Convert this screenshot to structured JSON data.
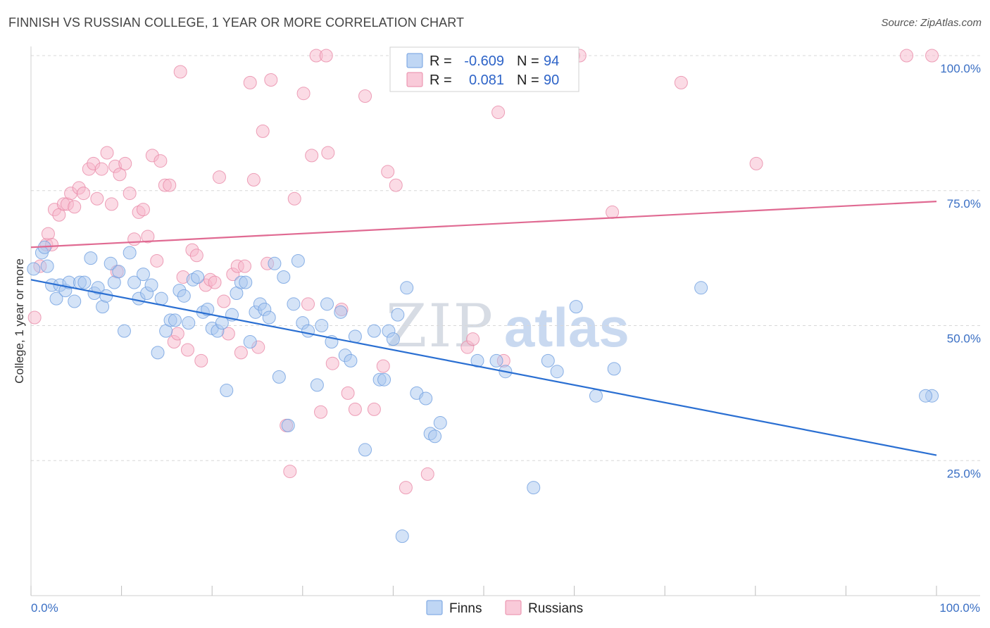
{
  "title": "FINNISH VS RUSSIAN COLLEGE, 1 YEAR OR MORE CORRELATION CHART",
  "source": "Source: ZipAtlas.com",
  "watermark": {
    "zip": "ZIP",
    "atlas": "atlas"
  },
  "legend_box": {
    "row1": {
      "r_label": "R =",
      "r_value": "-0.609",
      "n_label": "N =",
      "n_value": "94",
      "color": "#a9c8f0"
    },
    "row2": {
      "r_label": "R =",
      "r_value": "0.081",
      "n_label": "N =",
      "n_value": "90",
      "color": "#f7b8cc"
    }
  },
  "bottom_legend": {
    "finns": "Finns",
    "russians": "Russians"
  },
  "colors": {
    "finns_fill": "#a9c8f0",
    "finns_stroke": "#6f9fe0",
    "finns_line": "#2a6fd2",
    "russians_fill": "#f7b8cc",
    "russians_stroke": "#e98aa8",
    "russians_line": "#e06a92",
    "grid": "#d8d8d8",
    "axis_text": "#3a6fc4"
  },
  "chart_data": {
    "type": "scatter",
    "title": "FINNISH VS RUSSIAN COLLEGE, 1 YEAR OR MORE CORRELATION CHART",
    "xlabel": "",
    "ylabel": "College, 1 year or more",
    "xlim": [
      0,
      100
    ],
    "ylim": [
      0,
      100
    ],
    "x_tick_labels": [
      "0.0%",
      "100.0%"
    ],
    "y_tick_labels": [
      "100.0%",
      "75.0%",
      "50.0%",
      "25.0%"
    ],
    "y_ticks": [
      100,
      75,
      50,
      25
    ],
    "grid": true,
    "legend": "top-center",
    "series": [
      {
        "name": "Finns",
        "r": -0.609,
        "n": 94,
        "trend": {
          "y_at_x0": 58.5,
          "y_at_x100": 26.0
        },
        "points": [
          [
            0.3,
            60.5
          ],
          [
            1.2,
            63.5
          ],
          [
            1.5,
            64.5
          ],
          [
            1.8,
            61
          ],
          [
            2.3,
            57.5
          ],
          [
            2.8,
            55
          ],
          [
            3.2,
            57.5
          ],
          [
            3.8,
            56.5
          ],
          [
            4.2,
            58
          ],
          [
            4.8,
            54.5
          ],
          [
            5.4,
            58
          ],
          [
            5.9,
            58
          ],
          [
            6.6,
            62.5
          ],
          [
            7.0,
            56
          ],
          [
            7.4,
            57
          ],
          [
            7.9,
            53.5
          ],
          [
            8.3,
            55.5
          ],
          [
            8.8,
            61.5
          ],
          [
            9.2,
            58
          ],
          [
            9.7,
            60
          ],
          [
            10.3,
            49
          ],
          [
            10.9,
            63.5
          ],
          [
            11.4,
            58
          ],
          [
            11.9,
            55
          ],
          [
            12.4,
            59.5
          ],
          [
            12.8,
            56
          ],
          [
            13.3,
            57.5
          ],
          [
            14.0,
            45
          ],
          [
            14.4,
            55
          ],
          [
            14.9,
            49
          ],
          [
            15.4,
            51
          ],
          [
            15.9,
            51
          ],
          [
            16.4,
            56.5
          ],
          [
            16.9,
            55.5
          ],
          [
            17.4,
            50.5
          ],
          [
            17.9,
            58.5
          ],
          [
            18.4,
            59
          ],
          [
            19.0,
            52.5
          ],
          [
            19.5,
            53
          ],
          [
            20.0,
            49.5
          ],
          [
            20.6,
            49
          ],
          [
            21.1,
            50.5
          ],
          [
            21.6,
            38
          ],
          [
            22.2,
            52
          ],
          [
            22.7,
            56
          ],
          [
            23.2,
            58
          ],
          [
            23.7,
            58
          ],
          [
            24.2,
            47
          ],
          [
            24.8,
            52.5
          ],
          [
            25.3,
            54
          ],
          [
            25.8,
            53
          ],
          [
            26.3,
            51.5
          ],
          [
            26.9,
            61.5
          ],
          [
            27.4,
            40.5
          ],
          [
            27.9,
            59
          ],
          [
            28.4,
            31.5
          ],
          [
            29.0,
            54
          ],
          [
            29.5,
            62
          ],
          [
            30.0,
            50.5
          ],
          [
            30.6,
            49
          ],
          [
            31.6,
            39
          ],
          [
            32.1,
            50
          ],
          [
            32.7,
            54
          ],
          [
            33.2,
            47
          ],
          [
            34.2,
            52.5
          ],
          [
            34.7,
            44.5
          ],
          [
            35.3,
            43.5
          ],
          [
            35.8,
            48
          ],
          [
            36.9,
            27
          ],
          [
            37.9,
            49
          ],
          [
            38.5,
            40
          ],
          [
            39.0,
            40
          ],
          [
            39.5,
            49
          ],
          [
            40.0,
            47.5
          ],
          [
            40.5,
            52
          ],
          [
            41.0,
            11
          ],
          [
            41.5,
            57
          ],
          [
            42.6,
            37.5
          ],
          [
            43.6,
            36.5
          ],
          [
            44.1,
            30
          ],
          [
            44.6,
            29.5
          ],
          [
            45.2,
            32
          ],
          [
            49.3,
            43.5
          ],
          [
            51.4,
            43.5
          ],
          [
            52.4,
            41.5
          ],
          [
            55.5,
            20
          ],
          [
            57.1,
            43.5
          ],
          [
            58.1,
            41.5
          ],
          [
            60.2,
            53.5
          ],
          [
            62.4,
            37
          ],
          [
            64.4,
            42
          ],
          [
            74.0,
            57
          ],
          [
            99.5,
            37
          ],
          [
            98.8,
            37
          ]
        ]
      },
      {
        "name": "Russians",
        "r": 0.081,
        "n": 90,
        "trend": {
          "y_at_x0": 64.5,
          "y_at_x100": 73.0
        },
        "points": [
          [
            0.4,
            51.5
          ],
          [
            1.0,
            61
          ],
          [
            1.7,
            65
          ],
          [
            1.9,
            67
          ],
          [
            2.3,
            65
          ],
          [
            2.6,
            71.5
          ],
          [
            3.1,
            70.5
          ],
          [
            3.6,
            72.5
          ],
          [
            4.0,
            72.5
          ],
          [
            4.4,
            74.5
          ],
          [
            4.8,
            72
          ],
          [
            5.3,
            75.5
          ],
          [
            5.8,
            74.5
          ],
          [
            6.4,
            79
          ],
          [
            6.9,
            80
          ],
          [
            7.3,
            73.5
          ],
          [
            7.8,
            79
          ],
          [
            8.4,
            82
          ],
          [
            8.9,
            72.5
          ],
          [
            9.3,
            79.5
          ],
          [
            9.8,
            78
          ],
          [
            10.4,
            80
          ],
          [
            10.9,
            74.5
          ],
          [
            11.4,
            66
          ],
          [
            11.9,
            71
          ],
          [
            12.4,
            71.5
          ],
          [
            12.9,
            66.5
          ],
          [
            13.4,
            81.5
          ],
          [
            13.9,
            62
          ],
          [
            14.3,
            80.5
          ],
          [
            14.8,
            76
          ],
          [
            15.3,
            76
          ],
          [
            15.8,
            47
          ],
          [
            16.2,
            48.5
          ],
          [
            16.8,
            59
          ],
          [
            17.3,
            45.5
          ],
          [
            17.8,
            64
          ],
          [
            18.3,
            63
          ],
          [
            18.8,
            43.5
          ],
          [
            19.3,
            57.5
          ],
          [
            19.8,
            58.5
          ],
          [
            20.3,
            58
          ],
          [
            20.8,
            77.5
          ],
          [
            21.3,
            54.5
          ],
          [
            21.8,
            48.5
          ],
          [
            22.3,
            59.5
          ],
          [
            22.8,
            61
          ],
          [
            23.2,
            45
          ],
          [
            23.6,
            61
          ],
          [
            24.2,
            95
          ],
          [
            24.6,
            77
          ],
          [
            25.1,
            46
          ],
          [
            25.6,
            86
          ],
          [
            26.1,
            61.5
          ],
          [
            26.5,
            95.5
          ],
          [
            28.2,
            31.5
          ],
          [
            28.6,
            23
          ],
          [
            29.1,
            73.5
          ],
          [
            30.1,
            93
          ],
          [
            30.6,
            54
          ],
          [
            31.0,
            81.5
          ],
          [
            31.5,
            100
          ],
          [
            32.0,
            34
          ],
          [
            32.6,
            100
          ],
          [
            32.8,
            82
          ],
          [
            33.3,
            43
          ],
          [
            34.3,
            53
          ],
          [
            35.0,
            37.5
          ],
          [
            35.8,
            34.5
          ],
          [
            36.9,
            92.5
          ],
          [
            37.9,
            34.5
          ],
          [
            38.9,
            42.5
          ],
          [
            39.4,
            78.5
          ],
          [
            40.3,
            76
          ],
          [
            41.4,
            20
          ],
          [
            43.8,
            22.5
          ],
          [
            46.4,
            100
          ],
          [
            48.2,
            46
          ],
          [
            48.8,
            47.5
          ],
          [
            51.6,
            89.5
          ],
          [
            52.2,
            43.5
          ],
          [
            59.9,
            100
          ],
          [
            60.6,
            100
          ],
          [
            64.2,
            71
          ],
          [
            71.8,
            95
          ],
          [
            80.1,
            80
          ],
          [
            96.7,
            100
          ],
          [
            99.5,
            100
          ],
          [
            16.5,
            97
          ],
          [
            9.5,
            60
          ]
        ]
      }
    ]
  }
}
